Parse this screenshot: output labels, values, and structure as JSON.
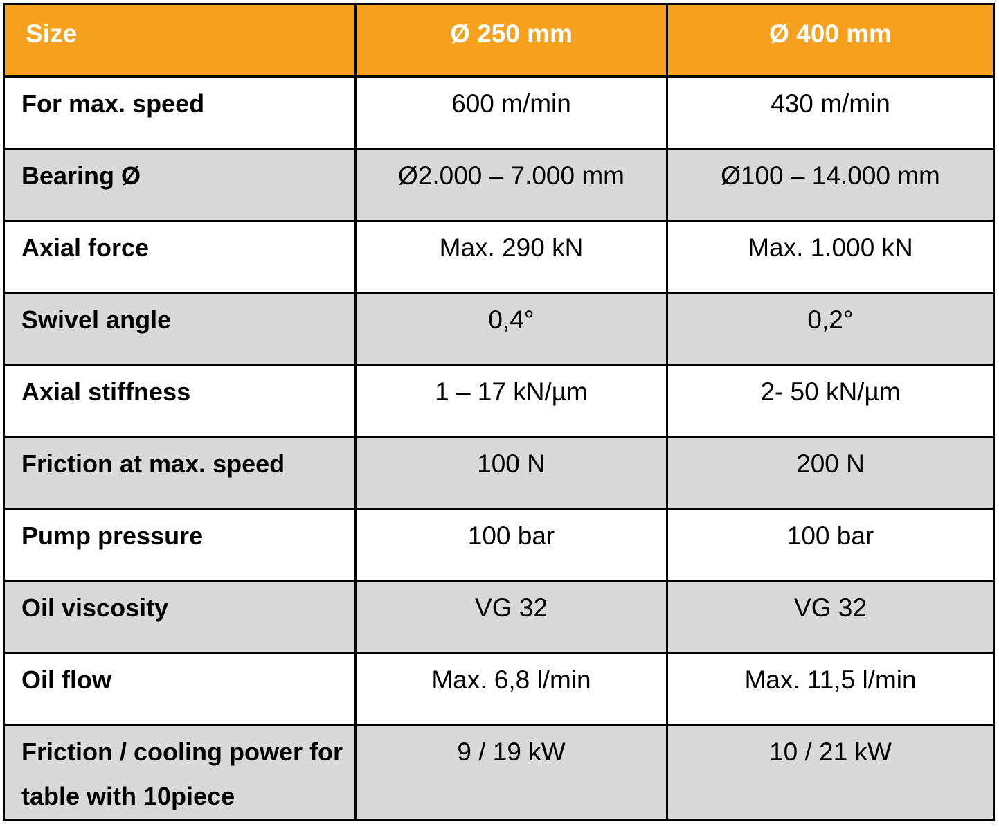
{
  "table": {
    "header": [
      "Size",
      "Ø 250 mm",
      "Ø 400 mm"
    ],
    "rows": [
      [
        "For max. speed",
        "600 m/min",
        "430 m/min"
      ],
      [
        "Bearing Ø",
        "Ø2.000 – 7.000 mm",
        "Ø100 – 14.000 mm"
      ],
      [
        "Axial force",
        "Max. 290 kN",
        "Max. 1.000 kN"
      ],
      [
        "Swivel angle",
        "0,4°",
        "0,2°"
      ],
      [
        "Axial stiffness",
        "1 – 17 kN/µm",
        "2- 50 kN/µm"
      ],
      [
        "Friction at max. speed",
        "100 N",
        "200 N"
      ],
      [
        "Pump pressure",
        "100 bar",
        "100 bar"
      ],
      [
        "Oil viscosity",
        "VG 32",
        "VG 32"
      ],
      [
        "Oil flow",
        "Max. 6,8 l/min",
        "Max. 11,5 l/min"
      ],
      [
        "Friction / cooling power for table with 10piece",
        "9 / 19 kW",
        "10 / 21 kW"
      ]
    ]
  }
}
